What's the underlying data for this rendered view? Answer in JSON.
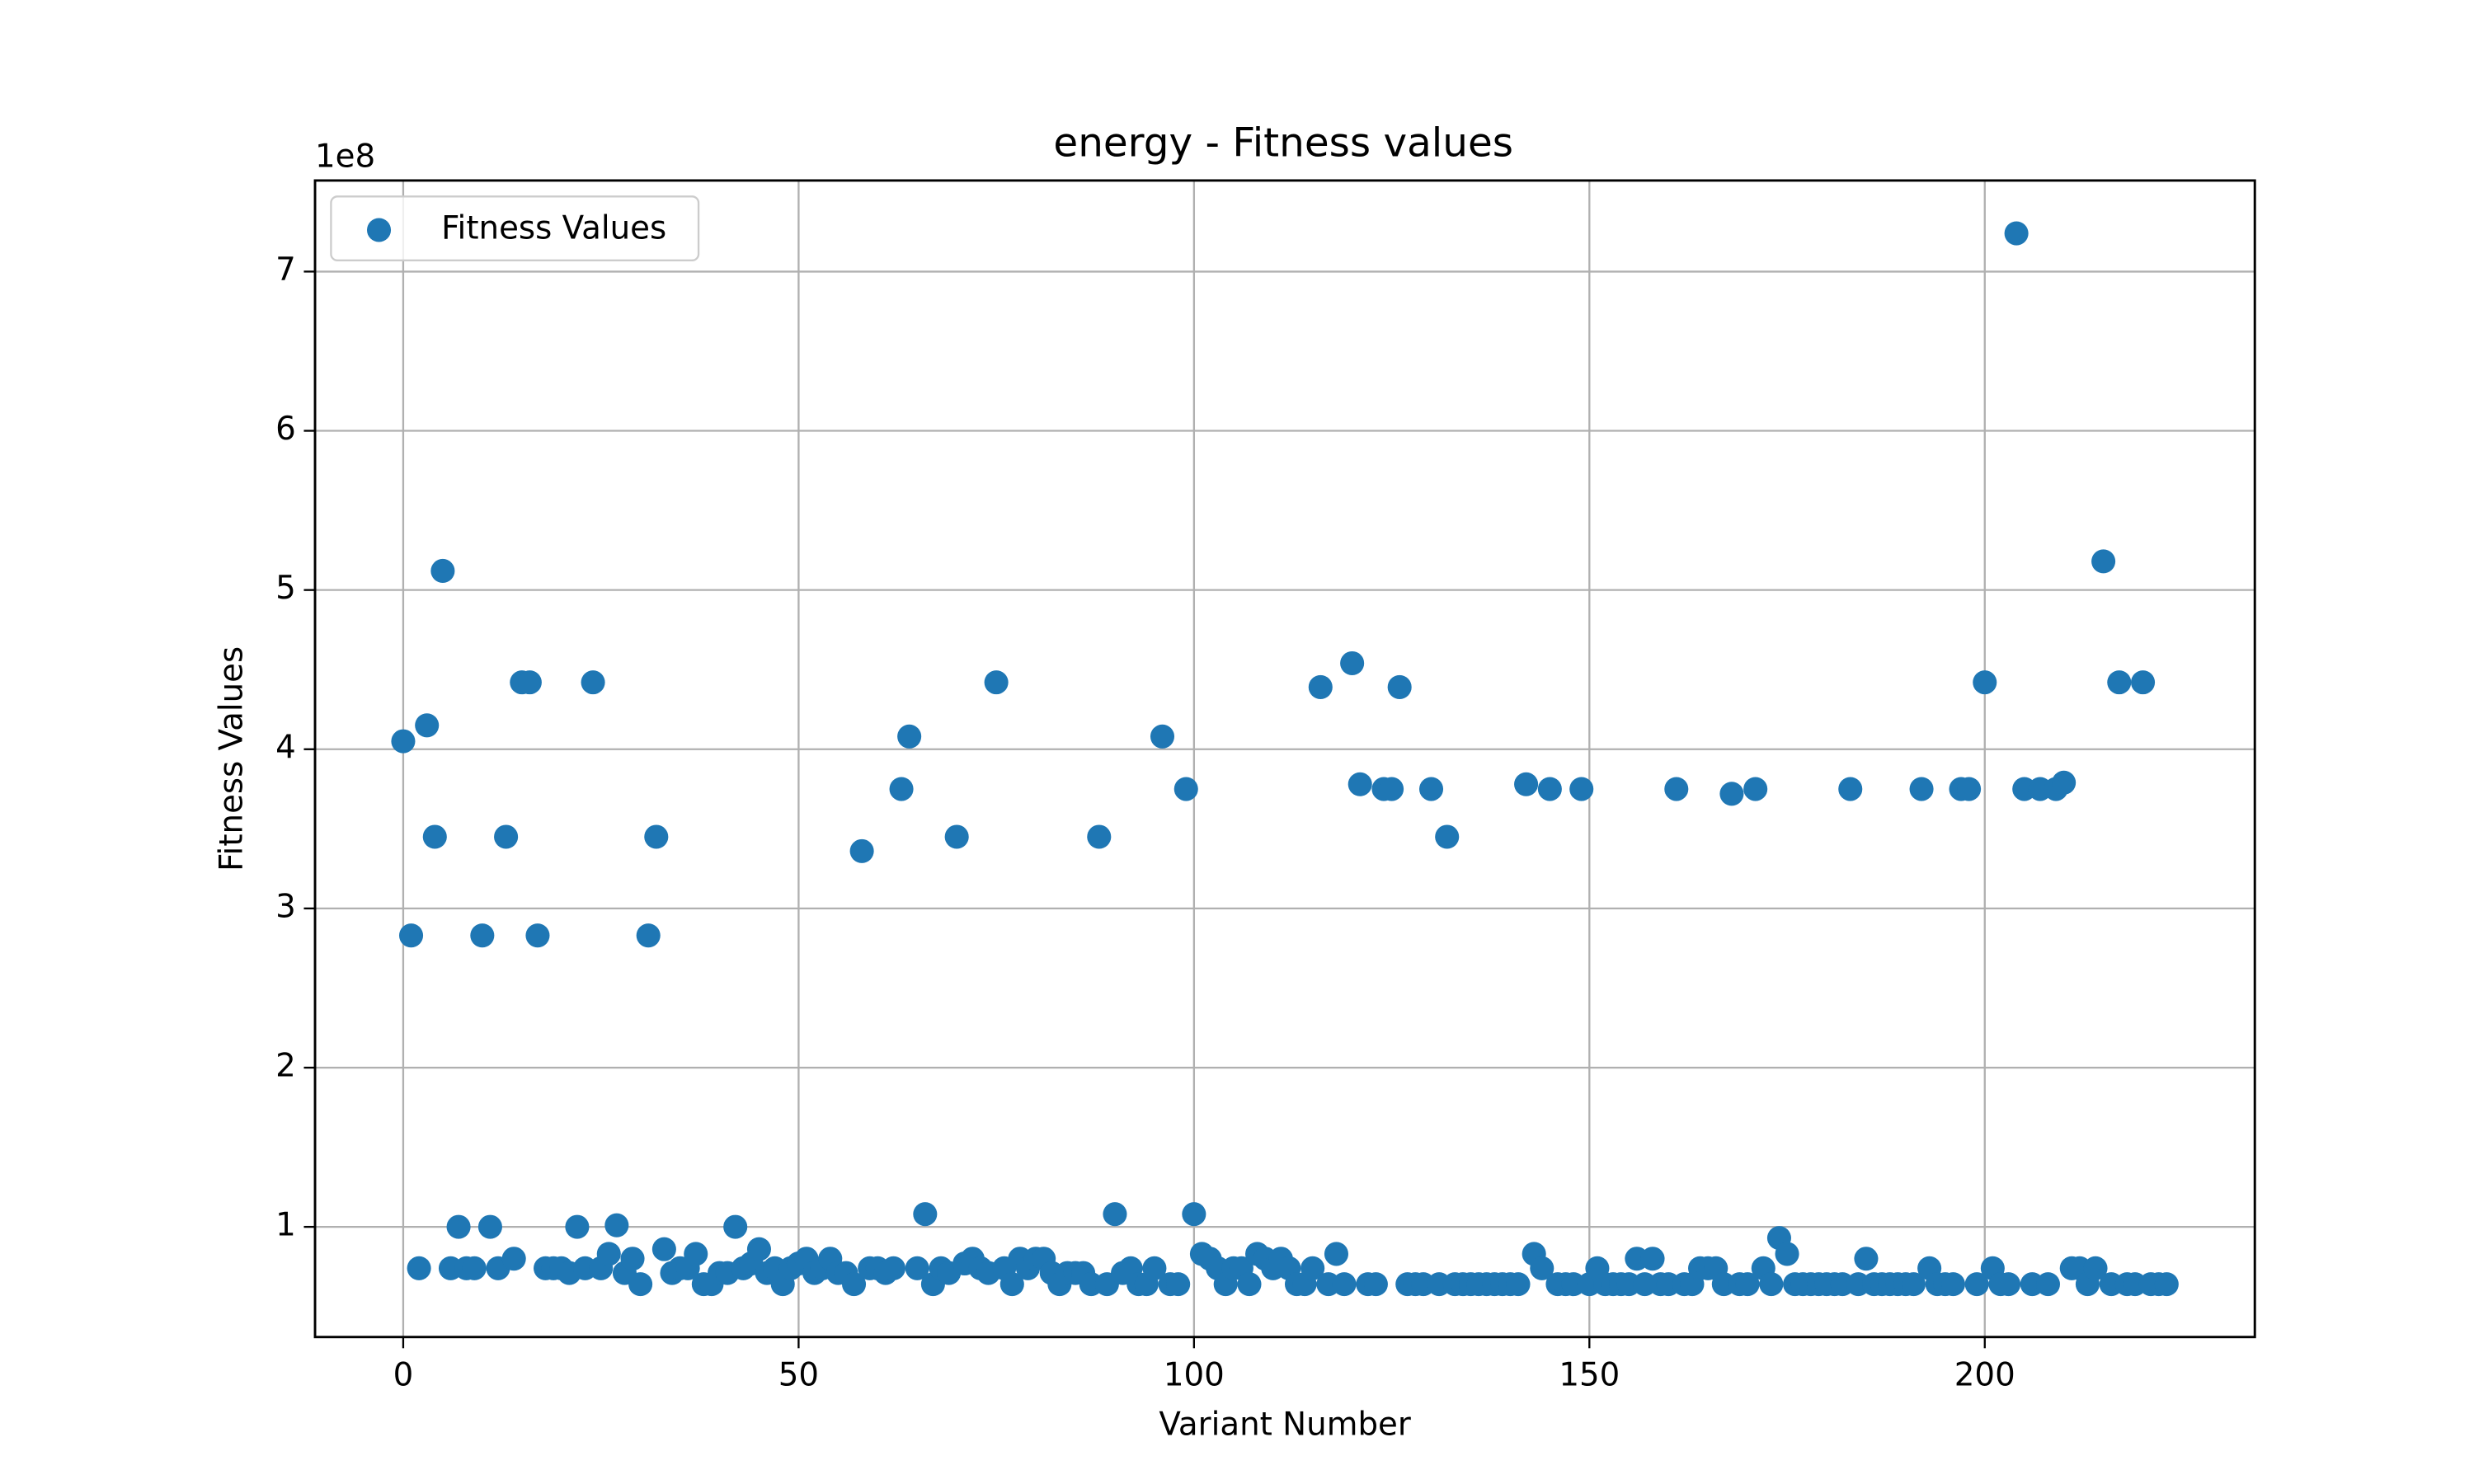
{
  "chart_data": {
    "type": "scatter",
    "title": "energy - Fitness values",
    "x_label": "Variant Number",
    "y_label": "Fitness Values",
    "y_offset_label": "1e8",
    "xlim": [
      -11.15,
      234.15
    ],
    "xticks": [
      0,
      50,
      100,
      150,
      200
    ],
    "ylim": [
      0.308,
      7.572
    ],
    "yticks": [
      1,
      2,
      3,
      4,
      5,
      6,
      7
    ],
    "grid": true,
    "legend": "upper left",
    "series": [
      {
        "name": "Fitness Values",
        "color": "#1f77b4",
        "x": [
          0,
          1,
          2,
          3,
          4,
          5,
          6,
          7,
          8,
          9,
          10,
          11,
          12,
          13,
          14,
          15,
          16,
          17,
          18,
          19,
          20,
          21,
          22,
          23,
          24,
          25,
          26,
          27,
          28,
          29,
          30,
          31,
          32,
          33,
          34,
          35,
          36,
          37,
          38,
          39,
          40,
          41,
          42,
          43,
          44,
          45,
          46,
          47,
          48,
          49,
          50,
          51,
          52,
          53,
          54,
          55,
          56,
          57,
          58,
          59,
          60,
          61,
          62,
          63,
          64,
          65,
          66,
          67,
          68,
          69,
          70,
          71,
          72,
          73,
          74,
          75,
          76,
          77,
          78,
          79,
          80,
          81,
          82,
          83,
          84,
          85,
          86,
          87,
          88,
          89,
          90,
          91,
          92,
          93,
          94,
          95,
          96,
          97,
          98,
          99,
          100,
          101,
          102,
          103,
          104,
          105,
          106,
          107,
          108,
          109,
          110,
          111,
          112,
          113,
          114,
          115,
          116,
          117,
          118,
          119,
          120,
          121,
          122,
          123,
          124,
          125,
          126,
          127,
          128,
          129,
          130,
          131,
          132,
          133,
          134,
          135,
          136,
          137,
          138,
          139,
          140,
          141,
          142,
          143,
          144,
          145,
          146,
          147,
          148,
          149,
          150,
          151,
          152,
          153,
          154,
          155,
          156,
          157,
          158,
          159,
          160,
          161,
          162,
          163,
          164,
          165,
          166,
          167,
          168,
          169,
          170,
          171,
          172,
          173,
          174,
          175,
          176,
          177,
          178,
          179,
          180,
          181,
          182,
          183,
          184,
          185,
          186,
          187,
          188,
          189,
          190,
          191,
          192,
          193,
          194,
          195,
          196,
          197,
          198,
          199,
          200,
          201,
          202,
          203,
          204,
          205,
          206,
          207,
          208,
          209,
          210,
          211,
          212,
          213,
          214,
          215,
          216,
          217,
          218,
          219,
          220,
          221,
          222,
          223
        ],
        "values": [
          4.05,
          2.83,
          0.74,
          4.15,
          3.45,
          5.12,
          0.74,
          1.0,
          0.74,
          0.74,
          2.83,
          1.0,
          0.74,
          3.45,
          0.8,
          4.42,
          4.42,
          2.83,
          0.74,
          0.74,
          0.74,
          0.71,
          1.0,
          0.74,
          4.42,
          0.74,
          0.83,
          1.01,
          0.71,
          0.8,
          0.64,
          2.83,
          3.45,
          0.86,
          0.71,
          0.74,
          0.74,
          0.83,
          0.64,
          0.64,
          0.71,
          0.71,
          1.0,
          0.74,
          0.77,
          0.86,
          0.71,
          0.74,
          0.64,
          0.74,
          0.77,
          0.8,
          0.71,
          0.74,
          0.8,
          0.71,
          0.71,
          0.64,
          3.36,
          0.74,
          0.74,
          0.71,
          0.74,
          3.75,
          4.08,
          0.74,
          1.08,
          0.64,
          0.74,
          0.71,
          3.45,
          0.77,
          0.8,
          0.74,
          0.71,
          4.42,
          0.74,
          0.64,
          0.8,
          0.74,
          0.8,
          0.8,
          0.71,
          0.64,
          0.71,
          0.71,
          0.71,
          0.64,
          3.45,
          0.64,
          1.08,
          0.71,
          0.74,
          0.64,
          0.64,
          0.74,
          4.08,
          0.64,
          0.64,
          3.75,
          1.08,
          0.83,
          0.8,
          0.74,
          0.64,
          0.74,
          0.74,
          0.64,
          0.83,
          0.8,
          0.74,
          0.8,
          0.74,
          0.64,
          0.64,
          0.74,
          4.39,
          0.64,
          0.83,
          0.64,
          4.54,
          3.78,
          0.64,
          0.64,
          3.75,
          3.75,
          4.39,
          0.64,
          0.64,
          0.64,
          3.75,
          0.64,
          3.45,
          0.64,
          0.64,
          0.64,
          0.64,
          0.64,
          0.64,
          0.64,
          0.64,
          0.64,
          3.78,
          0.83,
          0.74,
          3.75,
          0.64,
          0.64,
          0.64,
          3.75,
          0.64,
          0.74,
          0.64,
          0.64,
          0.64,
          0.64,
          0.8,
          0.64,
          0.8,
          0.64,
          0.64,
          3.75,
          0.64,
          0.64,
          0.74,
          0.74,
          0.74,
          0.64,
          3.72,
          0.64,
          0.64,
          3.75,
          0.74,
          0.64,
          0.93,
          0.83,
          0.64,
          0.64,
          0.64,
          0.64,
          0.64,
          0.64,
          0.64,
          3.75,
          0.64,
          0.8,
          0.64,
          0.64,
          0.64,
          0.64,
          0.64,
          0.64,
          3.75,
          0.74,
          0.64,
          0.64,
          0.64,
          3.75,
          3.75,
          0.64,
          4.42,
          0.74,
          0.64,
          0.64,
          7.24,
          3.75,
          0.64,
          3.75,
          0.64,
          3.75,
          3.79,
          0.74,
          0.74,
          0.64,
          0.74,
          5.18,
          0.64,
          4.42,
          0.64,
          0.64,
          4.42,
          0.64,
          0.64,
          0.64
        ]
      }
    ]
  }
}
